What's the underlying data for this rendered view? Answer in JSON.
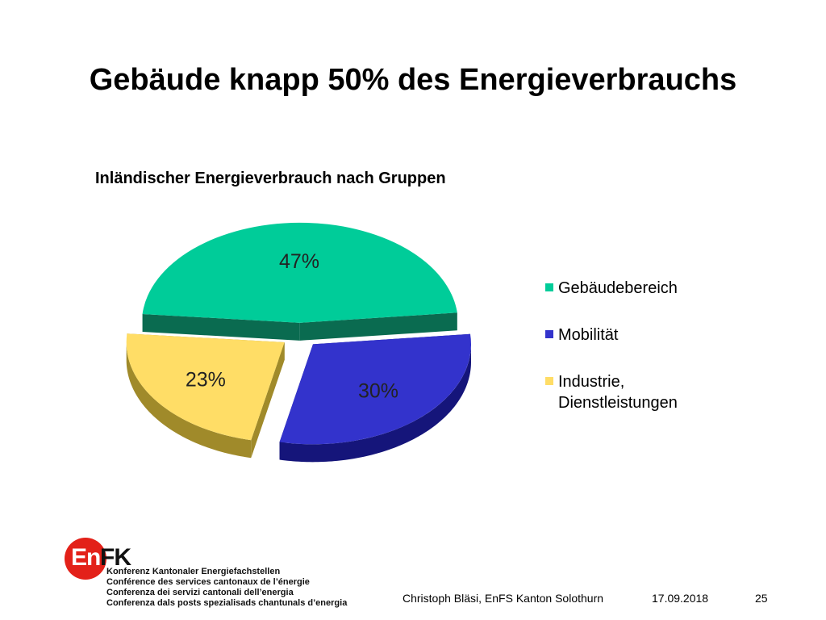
{
  "slide": {
    "title": "Gebäude knapp 50% des Energieverbrauchs"
  },
  "footer": {
    "author": "Christoph Bläsi, EnFS Kanton Solothurn",
    "date": "17.09.2018",
    "page": "25"
  },
  "logo": {
    "brand_en": "En",
    "brand_fk": "FK",
    "lines": [
      "Konferenz Kantonaler Energiefachstellen",
      "Conférence des services cantonaux de l’énergie",
      "Conferenza dei servizi cantonali dell’energia",
      "Conferenza dals posts spezialisads chantunals d’energia"
    ]
  },
  "chart_data": {
    "type": "pie",
    "title": "Inländischer Energieverbrauch nach Gruppen",
    "categories": [
      "Gebäudebereich",
      "Mobilität",
      "Industrie, Dienstleistungen"
    ],
    "values": [
      47,
      30,
      23
    ],
    "labels": [
      "47%",
      "30%",
      "23%"
    ],
    "colors": [
      "#00cc99",
      "#3333cc",
      "#ffdd66"
    ],
    "dark_colors": [
      "#0a6b50",
      "#15157a",
      "#a08a2a"
    ],
    "legend_position": "right",
    "exploded": true,
    "three_d": true
  }
}
